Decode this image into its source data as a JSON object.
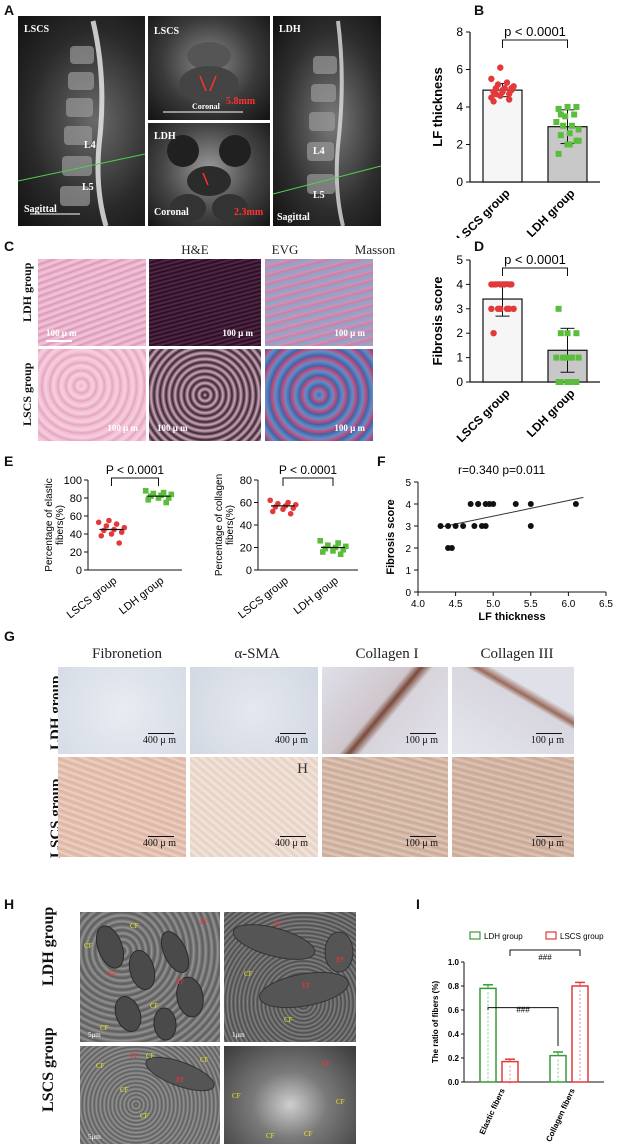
{
  "panels": {
    "A": {
      "letter": "A",
      "images": [
        {
          "label": "LSCS",
          "sub": "Sagittal",
          "l4": "L4",
          "l5": "L5"
        },
        {
          "label": "LSCS",
          "sub": "Coronal",
          "measure": "5.8mm"
        },
        {
          "label": "LDH",
          "sub": "Coronal",
          "measure": "2.3mm"
        },
        {
          "label": "LDH",
          "sub": "Sagittal",
          "l4": "L4",
          "l5": "L5"
        }
      ]
    },
    "B": {
      "letter": "B"
    },
    "C": {
      "letter": "C",
      "columns": [
        "H&E",
        "EVG",
        "Masson"
      ],
      "rows": [
        "LDH group",
        "LSCS group"
      ],
      "scale": "100 μ m"
    },
    "D": {
      "letter": "D"
    },
    "E": {
      "letter": "E"
    },
    "F": {
      "letter": "F"
    },
    "G": {
      "letter": "G",
      "columns": [
        "Fibronetion",
        "α-SMA",
        "Collagen I",
        "Collagen III"
      ],
      "rows": [
        "LDH group",
        "LSCS group"
      ],
      "scales": [
        "400 μ m",
        "400 μ m",
        "100 μ m",
        "100 μ m"
      ],
      "marker": "H"
    },
    "H": {
      "letter": "H",
      "rows": [
        "LDH group",
        "LSCS group"
      ],
      "cf": "CF",
      "ef": "EF",
      "scale_a": "5μm",
      "scale_b": "1μm"
    },
    "I": {
      "letter": "I"
    }
  },
  "chart_data": [
    {
      "id": "B",
      "type": "bar",
      "ylabel": "LF thickness",
      "categories": [
        "LSCS group",
        "LDH group"
      ],
      "values": [
        4.9,
        2.95
      ],
      "errors": [
        0.35,
        0.9
      ],
      "ylim": [
        0,
        8
      ],
      "yticks": [
        0,
        2,
        4,
        6,
        8
      ],
      "annotation": "p < 0.0001",
      "points": [
        [
          4.5,
          4.6,
          4.7,
          4.8,
          4.8,
          4.9,
          5.0,
          5.0,
          5.1,
          5.2,
          5.3,
          5.5,
          6.1,
          4.4,
          4.3,
          4.9,
          5.0,
          4.7
        ],
        [
          1.5,
          2.0,
          2.2,
          2.5,
          2.6,
          2.8,
          3.0,
          3.0,
          3.2,
          3.5,
          3.6,
          3.9,
          4.0,
          4.0,
          3.6,
          2.0,
          2.2
        ]
      ],
      "colors": [
        "#e23a3a",
        "#5bbd3c"
      ]
    },
    {
      "id": "D",
      "type": "bar",
      "ylabel": "Fibrosis score",
      "categories": [
        "LSCS group",
        "LDH group"
      ],
      "values": [
        3.4,
        1.3
      ],
      "errors": [
        0.7,
        0.9
      ],
      "ylim": [
        0,
        5
      ],
      "yticks": [
        0,
        1,
        2,
        3,
        4,
        5
      ],
      "annotation": "p < 0.0001",
      "points": [
        [
          4,
          4,
          4,
          4,
          4,
          4,
          4,
          4,
          3,
          3,
          3,
          3,
          3,
          3,
          2
        ],
        [
          3,
          2,
          2,
          2,
          1,
          1,
          1,
          1,
          1,
          1,
          0,
          0,
          0,
          0,
          0,
          0
        ]
      ],
      "colors": [
        "#e23a3a",
        "#5bbd3c"
      ]
    },
    {
      "id": "E1",
      "type": "scatter",
      "ylabel": "Percentage of elastic fibers(%)",
      "categories": [
        "LSCS group",
        "LDH group"
      ],
      "ylim": [
        0,
        100
      ],
      "yticks": [
        0,
        20,
        40,
        60,
        80,
        100
      ],
      "annotation": "P < 0.0001",
      "points": [
        [
          30,
          38,
          40,
          42,
          44,
          45,
          47,
          49,
          51,
          53,
          55
        ],
        [
          75,
          78,
          80,
          80,
          82,
          83,
          84,
          85,
          86,
          88
        ]
      ],
      "means": [
        45,
        82
      ],
      "colors": [
        "#e23a3a",
        "#5bbd3c"
      ]
    },
    {
      "id": "E2",
      "type": "scatter",
      "ylabel": "Percentage of collagen fibers(%)",
      "categories": [
        "LSCS group",
        "LDH group"
      ],
      "ylim": [
        0,
        80
      ],
      "yticks": [
        0,
        20,
        40,
        60,
        80
      ],
      "annotation": "P < 0.0001",
      "points": [
        [
          50,
          52,
          54,
          55,
          56,
          57,
          58,
          59,
          60,
          62
        ],
        [
          14,
          16,
          17,
          18,
          19,
          20,
          21,
          22,
          24,
          26
        ]
      ],
      "means": [
        57,
        20
      ],
      "colors": [
        "#e23a3a",
        "#5bbd3c"
      ]
    },
    {
      "id": "F",
      "type": "scatter",
      "xlabel": "LF thickness",
      "ylabel": "Fibrosis score",
      "xlim": [
        4.0,
        6.5
      ],
      "ylim": [
        0,
        5
      ],
      "xticks": [
        "4.0",
        "4.5",
        "5.0",
        "5.5",
        "6.0",
        "6.5"
      ],
      "yticks": [
        0,
        1,
        2,
        3,
        4,
        5
      ],
      "annotation": "r=0.340  p=0.011",
      "x": [
        4.3,
        4.4,
        4.5,
        4.4,
        4.45,
        4.6,
        4.7,
        4.75,
        4.8,
        4.85,
        4.9,
        4.95,
        5.0,
        4.9,
        5.3,
        5.5,
        5.5,
        6.1,
        4.8
      ],
      "y": [
        3,
        3,
        3,
        2,
        2,
        3,
        4,
        3,
        4,
        3,
        4,
        4,
        4,
        3,
        4,
        4,
        3,
        4,
        4
      ],
      "fit": [
        [
          4.3,
          2.95
        ],
        [
          6.2,
          4.3
        ]
      ]
    },
    {
      "id": "I",
      "type": "bar",
      "ylabel": "The ratio of fibers (%)",
      "categories": [
        "Elastic fibers",
        "Collagen fibers"
      ],
      "series": [
        {
          "name": "LDH group",
          "values": [
            0.78,
            0.22
          ],
          "errors": [
            0.03,
            0.03
          ],
          "color": "#3a9a3a"
        },
        {
          "name": "LSCS group",
          "values": [
            0.17,
            0.8
          ],
          "errors": [
            0.02,
            0.03
          ],
          "color": "#e23a3a"
        }
      ],
      "ylim": [
        0,
        1.0
      ],
      "yticks": [
        "0.0",
        "0.2",
        "0.4",
        "0.6",
        "0.8",
        "1.0"
      ],
      "annotations": [
        "###",
        "###"
      ],
      "legend": "top"
    }
  ]
}
